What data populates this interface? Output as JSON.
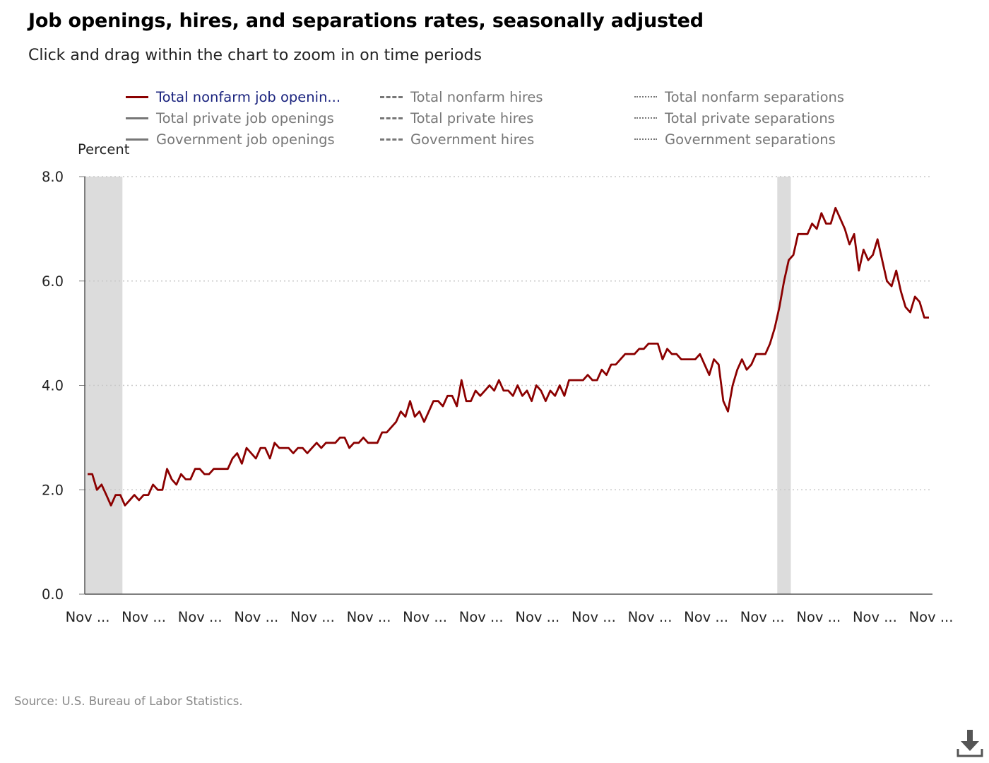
{
  "header": {
    "title": "Job openings, hires, and separations rates, seasonally adjusted",
    "subtitle": "Click and drag within the chart to zoom in on time periods"
  },
  "legend": [
    {
      "label": "Total nonfarm job openin...",
      "style": "solid",
      "active": true
    },
    {
      "label": "Total nonfarm hires",
      "style": "dashed",
      "active": false
    },
    {
      "label": "Total nonfarm separations",
      "style": "dotted",
      "active": false
    },
    {
      "label": "Total private job openings",
      "style": "solid",
      "active": false
    },
    {
      "label": "Total private hires",
      "style": "dashed",
      "active": false
    },
    {
      "label": "Total private separations",
      "style": "dotted",
      "active": false
    },
    {
      "label": "Government job openings",
      "style": "solid",
      "active": false
    },
    {
      "label": "Government hires",
      "style": "dashed",
      "active": false
    },
    {
      "label": "Government separations",
      "style": "dotted",
      "active": false
    }
  ],
  "source": "Source: U.S. Bureau of Labor Statistics.",
  "download_icon": "download-icon",
  "colors": {
    "series": "#8b0000",
    "recession": "#dcdcdc",
    "grid": "#c8c8c8",
    "legend_active": "#1a237e",
    "legend_inactive": "#777777"
  },
  "chart_data": {
    "type": "line",
    "ylabel": "Percent",
    "ylim": [
      0,
      8
    ],
    "y_ticks": [
      "0.0",
      "2.0",
      "4.0",
      "6.0",
      "8.0"
    ],
    "x_tick_labels": [
      "Nov ...",
      "Nov ...",
      "Nov ...",
      "Nov ...",
      "Nov ...",
      "Nov ...",
      "Nov ...",
      "Nov ...",
      "Nov ...",
      "Nov ...",
      "Nov ...",
      "Nov ...",
      "Nov ...",
      "Nov ...",
      "Nov ...",
      "Nov ..."
    ],
    "grid": true,
    "legend_position": "top",
    "recession_shading": [
      {
        "start_index": 0,
        "end_index": 7
      },
      {
        "start_index": 148,
        "end_index": 150
      }
    ],
    "series": [
      {
        "name": "Total nonfarm job openin...",
        "values": [
          2.3,
          2.3,
          2.0,
          2.1,
          1.9,
          1.7,
          1.9,
          1.9,
          1.7,
          1.8,
          1.9,
          1.8,
          1.9,
          1.9,
          2.1,
          2.0,
          2.0,
          2.4,
          2.2,
          2.1,
          2.3,
          2.2,
          2.2,
          2.4,
          2.4,
          2.3,
          2.3,
          2.4,
          2.4,
          2.4,
          2.4,
          2.6,
          2.7,
          2.5,
          2.8,
          2.7,
          2.6,
          2.8,
          2.8,
          2.6,
          2.9,
          2.8,
          2.8,
          2.8,
          2.7,
          2.8,
          2.8,
          2.7,
          2.8,
          2.9,
          2.8,
          2.9,
          2.9,
          2.9,
          3.0,
          3.0,
          2.8,
          2.9,
          2.9,
          3.0,
          2.9,
          2.9,
          2.9,
          3.1,
          3.1,
          3.2,
          3.3,
          3.5,
          3.4,
          3.7,
          3.4,
          3.5,
          3.3,
          3.5,
          3.7,
          3.7,
          3.6,
          3.8,
          3.8,
          3.6,
          4.1,
          3.7,
          3.7,
          3.9,
          3.8,
          3.9,
          4.0,
          3.9,
          4.1,
          3.9,
          3.9,
          3.8,
          4.0,
          3.8,
          3.9,
          3.7,
          4.0,
          3.9,
          3.7,
          3.9,
          3.8,
          4.0,
          3.8,
          4.1,
          4.1,
          4.1,
          4.1,
          4.2,
          4.1,
          4.1,
          4.3,
          4.2,
          4.4,
          4.4,
          4.5,
          4.6,
          4.6,
          4.6,
          4.7,
          4.7,
          4.8,
          4.8,
          4.8,
          4.5,
          4.7,
          4.6,
          4.6,
          4.5,
          4.5,
          4.5,
          4.5,
          4.6,
          4.4,
          4.2,
          4.5,
          4.4,
          3.7,
          3.5,
          4.0,
          4.3,
          4.5,
          4.3,
          4.4,
          4.6,
          4.6,
          4.6,
          4.8,
          5.1,
          5.5,
          6.0,
          6.4,
          6.5,
          6.9,
          6.9,
          6.9,
          7.1,
          7.0,
          7.3,
          7.1,
          7.1,
          7.4,
          7.2,
          7.0,
          6.7,
          6.9,
          6.2,
          6.6,
          6.4,
          6.5,
          6.8,
          6.4,
          6.0,
          5.9,
          6.2,
          5.8,
          5.5,
          5.4,
          5.7,
          5.6,
          5.3,
          5.3
        ]
      }
    ]
  }
}
